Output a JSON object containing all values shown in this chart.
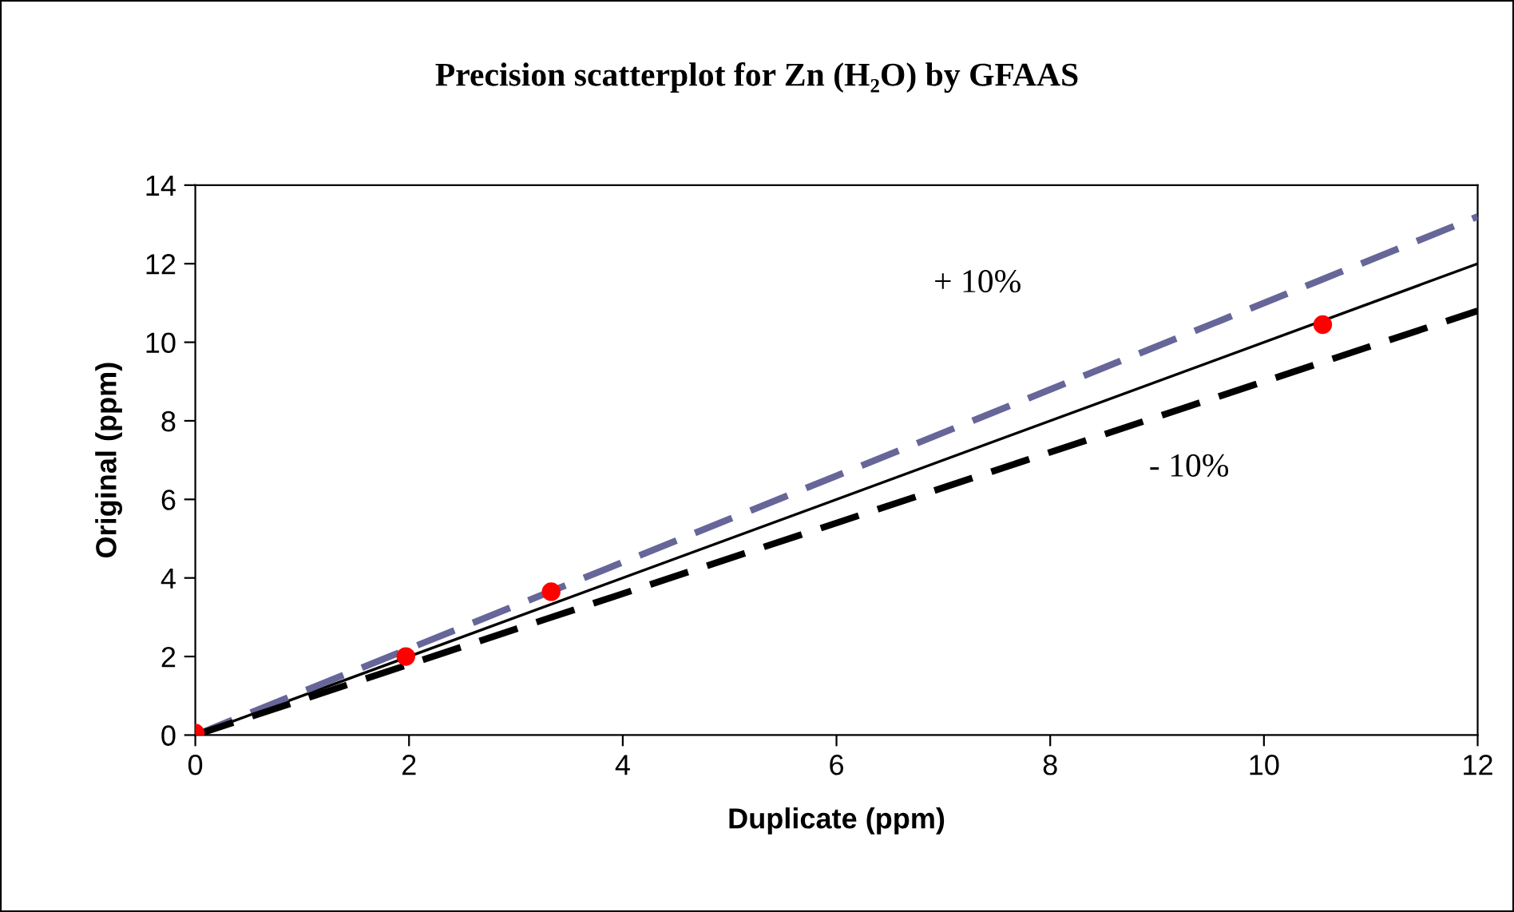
{
  "chart_data": {
    "type": "scatter",
    "title": "Precision scatterplot for Zn (H₂O) by GFAAS",
    "xlabel": "Duplicate (ppm)",
    "ylabel": "Original (ppm)",
    "xlim": [
      0,
      12
    ],
    "xticks": [
      0,
      2,
      4,
      6,
      8,
      10,
      12
    ],
    "ylim": [
      0,
      14
    ],
    "yticks": [
      0,
      2,
      4,
      6,
      8,
      10,
      12,
      14
    ],
    "grid": false,
    "legend": false,
    "series": [
      {
        "color": "#ff0000",
        "marker": "circle",
        "x": [
          0,
          1.97,
          3.33,
          10.55
        ],
        "values": [
          0.05,
          2.0,
          3.65,
          10.45
        ]
      },
      {
        "type": "line",
        "color": "#000000",
        "marker": "none",
        "line_style": "solid",
        "x": [
          0,
          12
        ],
        "values": [
          0,
          12
        ]
      },
      {
        "type": "line",
        "color": "#666699",
        "marker": "none",
        "line_style": "dashed",
        "x": [
          0,
          2,
          3.3,
          6,
          10.5,
          12
        ],
        "values": [
          0,
          2.2,
          3.63,
          6.6,
          11.55,
          13.2
        ]
      },
      {
        "type": "line",
        "color": "#000000",
        "marker": "none",
        "line_style": "dashed",
        "x": [
          0,
          2,
          3.3,
          6,
          10.5,
          12
        ],
        "values": [
          0,
          1.8,
          2.97,
          5.4,
          9.45,
          10.8
        ]
      }
    ],
    "annotations": [
      "+ 10%",
      "- 10%"
    ]
  }
}
